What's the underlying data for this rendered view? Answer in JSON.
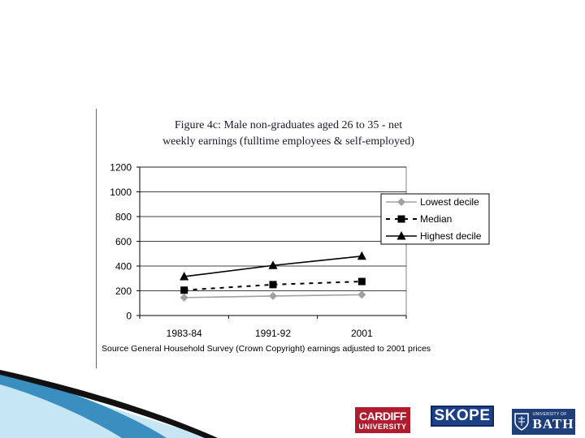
{
  "chart_data": {
    "type": "line",
    "title_line1": "Figure 4c: Male non-graduates aged 26 to 35 -  net",
    "title_line2": "weekly earnings (fulltime employees & self-employed)",
    "xlabel": "",
    "ylabel": "",
    "categories": [
      "1983-84",
      "1991-92",
      "2001"
    ],
    "yticks": [
      "0",
      "200",
      "400",
      "600",
      "800",
      "1000",
      "1200"
    ],
    "ylim": [
      0,
      1200
    ],
    "grid": true,
    "legend_position": "right",
    "series": [
      {
        "name": "Lowest decile",
        "values": [
          145,
          158,
          168
        ],
        "color": "#a0a0a0",
        "marker": "diamond",
        "line": "solid"
      },
      {
        "name": "Median",
        "values": [
          205,
          250,
          275
        ],
        "color": "#000000",
        "marker": "square",
        "line": "dashed"
      },
      {
        "name": "Highest decile",
        "values": [
          315,
          405,
          480
        ],
        "color": "#000000",
        "marker": "triangle",
        "line": "solid"
      }
    ]
  },
  "source_note": "Source General Household Survey (Crown Copyright) earnings adjusted to 2001 prices",
  "logos": {
    "cardiff_line1": "CARDIFF",
    "cardiff_line2": "UNIVERSITY",
    "skope": "SKOPE",
    "bath_line1": "UNIVERSITY OF",
    "bath_line2": "BATH"
  },
  "colors": {
    "swoosh_dark": "#111111",
    "swoosh_blue": "#3a8fc0",
    "swoosh_light": "#c6e6f4"
  }
}
